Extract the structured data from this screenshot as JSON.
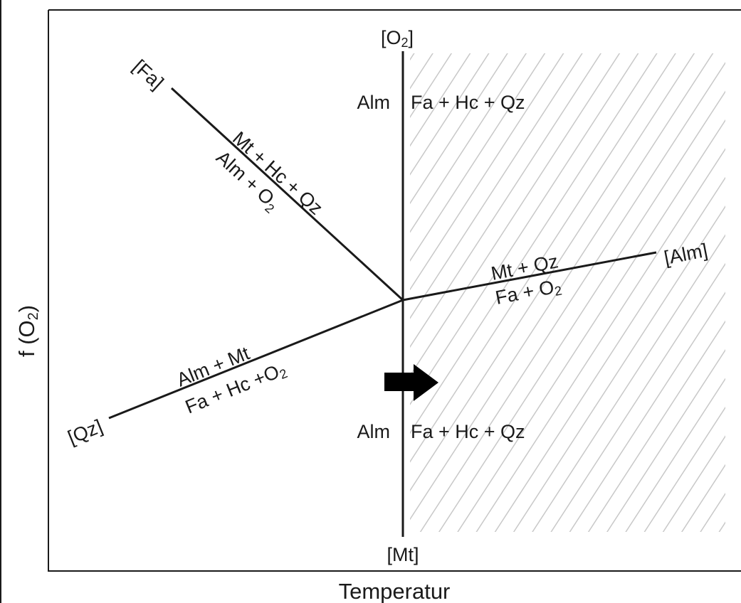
{
  "axes": {
    "x_label": "Temperatur",
    "y_label": "f (O",
    "y_label_sub": "2",
    "y_label_close": ")"
  },
  "endpoints": {
    "top": "[O",
    "top_sub": "2",
    "top_close": "]",
    "bottom": "[Mt]",
    "fa": "[Fa]",
    "alm": "[Alm]",
    "qz": "[Qz]"
  },
  "fields": {
    "upper_left": "Alm",
    "upper_right": "Fa + Hc + Qz",
    "lower_left": "Alm",
    "lower_right": "Fa + Hc + Qz"
  },
  "reactions": {
    "fa_top": "Mt + Hc + Qz",
    "fa_bottom": "Alm + O",
    "fa_bottom_sub": "2",
    "alm_top": "Mt + Qz",
    "alm_bottom": "Fa + O",
    "alm_bottom_sub": "2",
    "qz_top": "Alm + Mt",
    "qz_bottom": "Fa + Hc +O",
    "qz_bottom_sub": "2"
  },
  "colors": {
    "line": "#1a1a1a",
    "hatch": "#c8c8c8",
    "arrow": "#000000"
  }
}
